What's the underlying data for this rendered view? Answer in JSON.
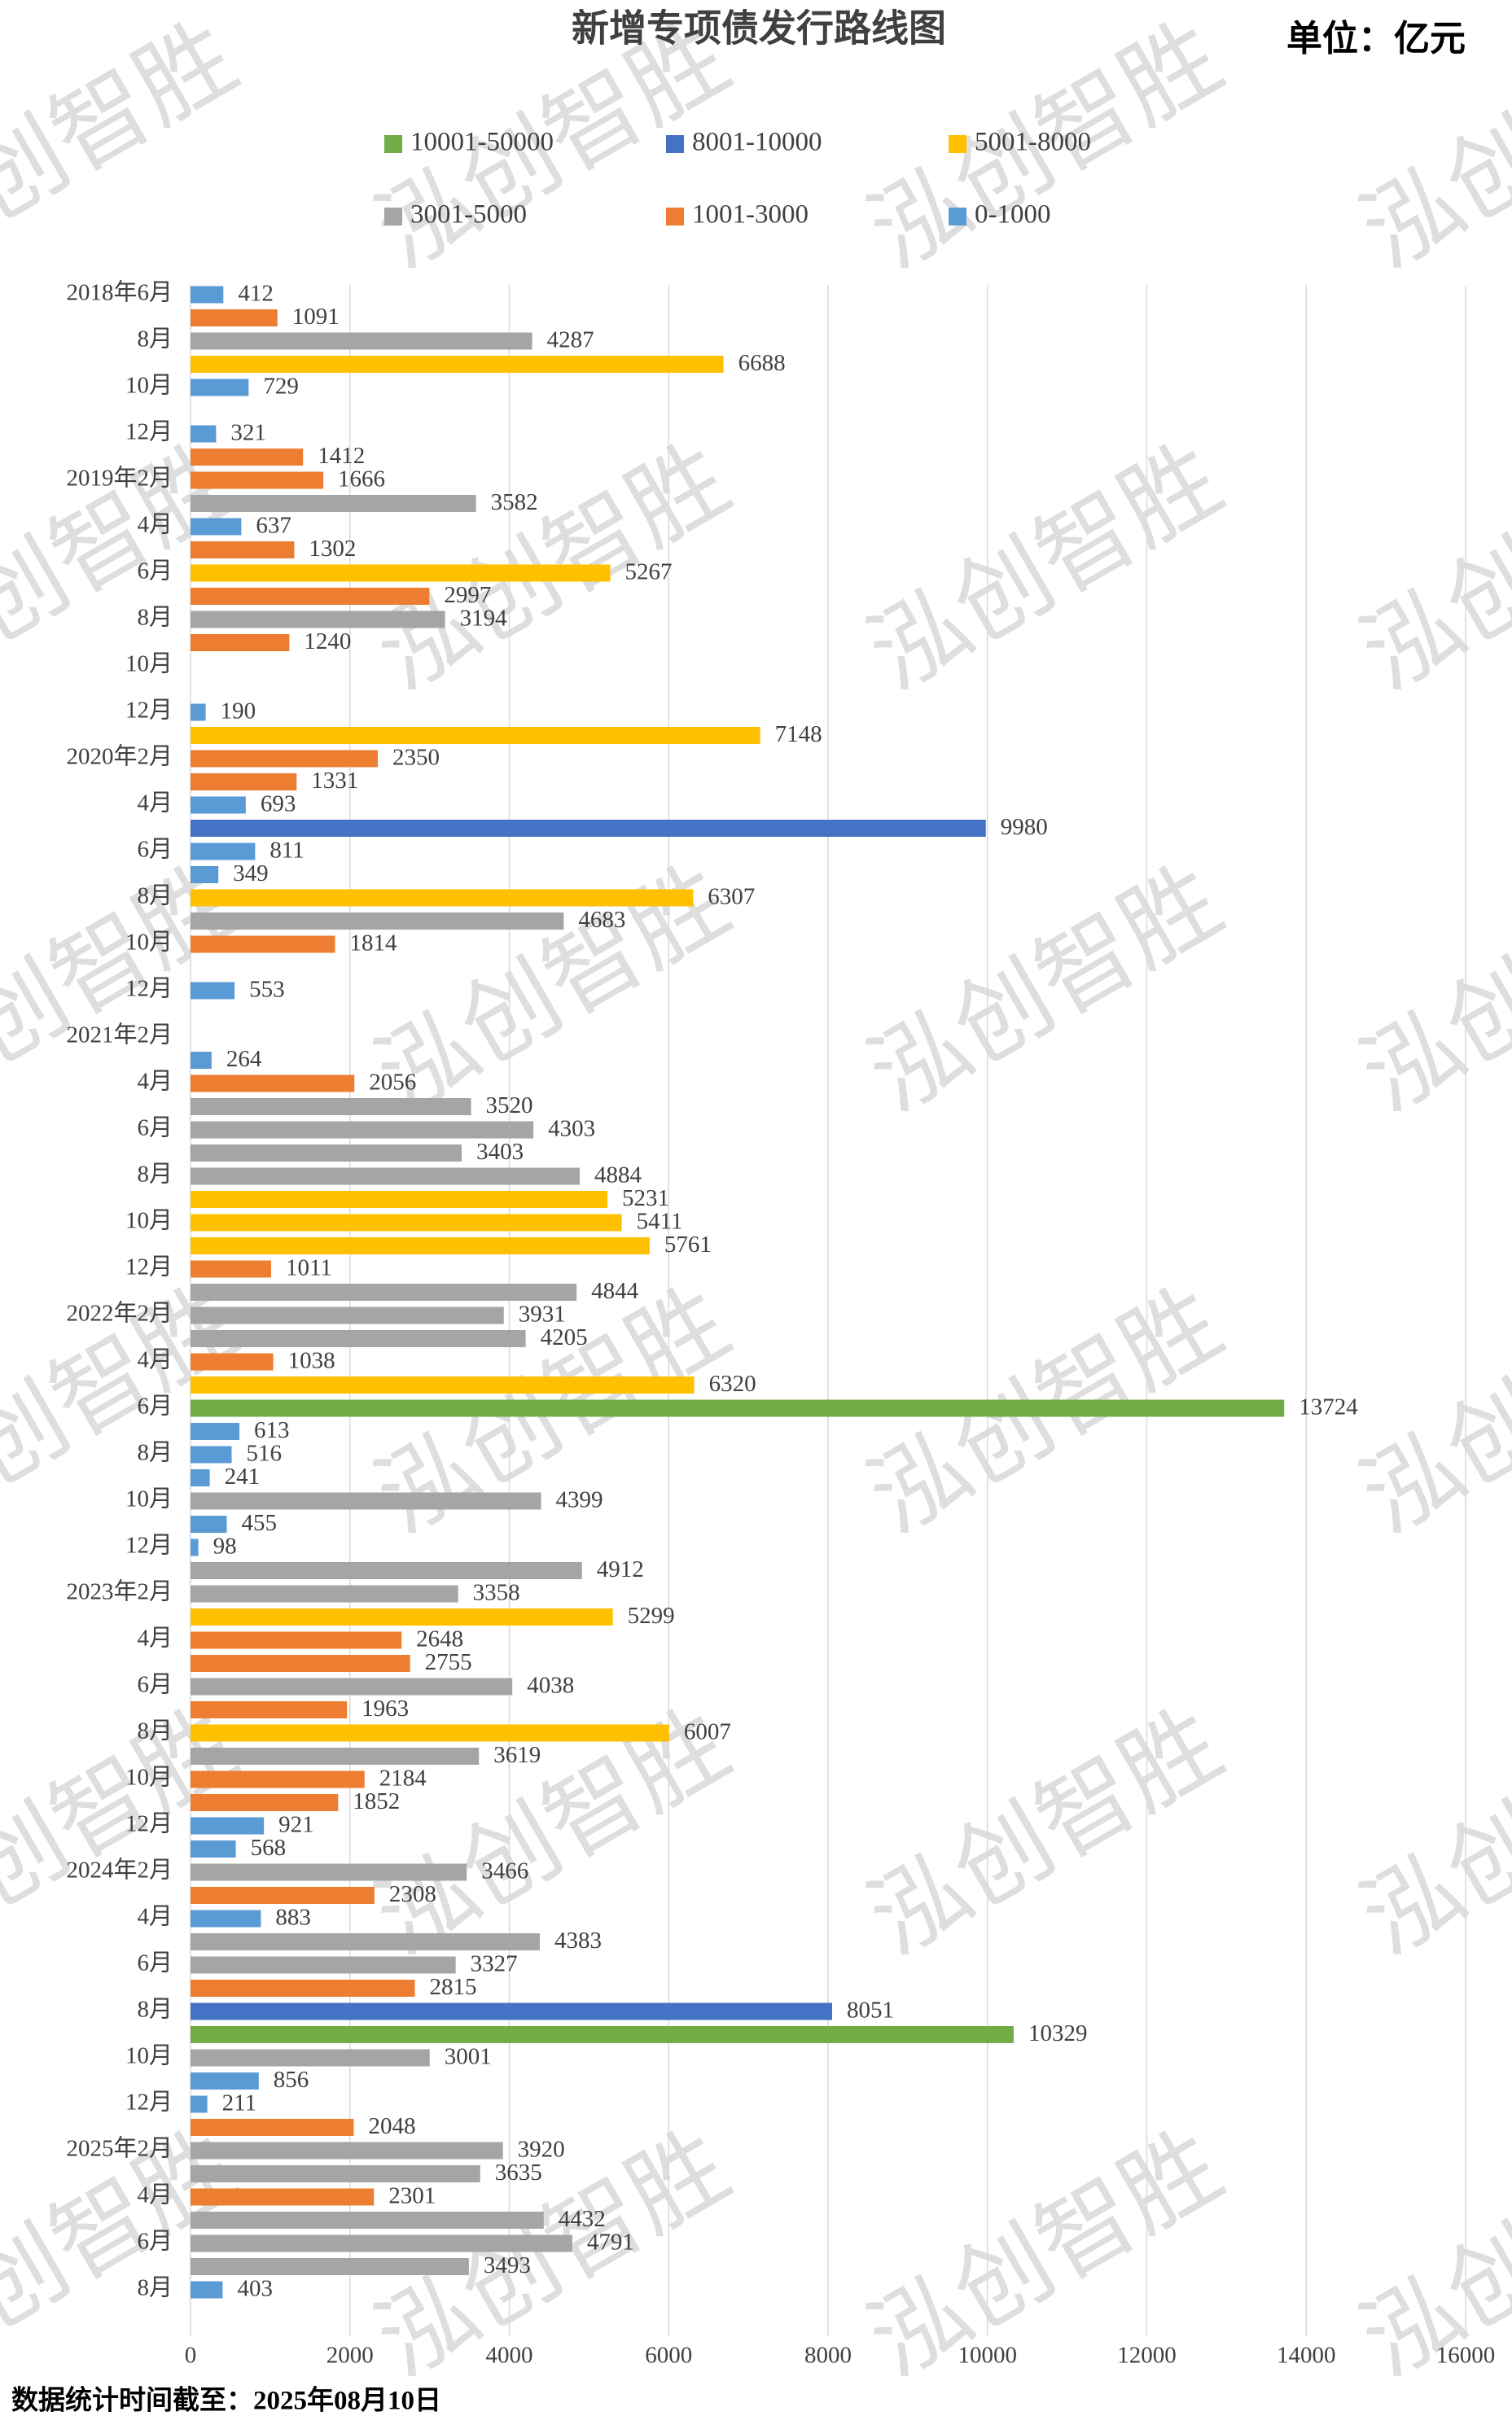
{
  "chart_data": {
    "type": "barh",
    "title": "新增专项债发行路线图",
    "unit": "单位：亿元",
    "footnote": "数据统计时间截至：2025年08月10日",
    "watermark": "泓创智胜",
    "legend": [
      {
        "name": "10001-50000",
        "color": "#70ad47"
      },
      {
        "name": "8001-10000",
        "color": "#4472c4"
      },
      {
        "name": "5001-8000",
        "color": "#ffc000"
      },
      {
        "name": "3001-5000",
        "color": "#a5a5a5"
      },
      {
        "name": "1001-3000",
        "color": "#ed7d31"
      },
      {
        "name": "0-1000",
        "color": "#5b9bd5"
      }
    ],
    "categories": [
      "2018年6月",
      null,
      "8月",
      null,
      "10月",
      null,
      "12月",
      null,
      "2019年2月",
      null,
      "4月",
      null,
      "6月",
      null,
      "8月",
      null,
      "10月",
      null,
      "12月",
      null,
      "2020年2月",
      null,
      "4月",
      null,
      "6月",
      null,
      "8月",
      null,
      "10月",
      null,
      "12月",
      null,
      "2021年2月",
      null,
      "4月",
      null,
      "6月",
      null,
      "8月",
      null,
      "10月",
      null,
      "12月",
      null,
      "2022年2月",
      null,
      "4月",
      null,
      "6月",
      null,
      "8月",
      null,
      "10月",
      null,
      "12月",
      null,
      "2023年2月",
      null,
      "4月",
      null,
      "6月",
      null,
      "8月",
      null,
      "10月",
      null,
      "12月",
      null,
      "2024年2月",
      null,
      "4月",
      null,
      "6月",
      null,
      "8月",
      null,
      "10月",
      null,
      "12月",
      null,
      "2025年2月",
      null,
      "4月",
      null,
      "6月",
      null,
      "8月"
    ],
    "values": [
      412,
      1091,
      4287,
      6688,
      729,
      null,
      321,
      1412,
      1666,
      3582,
      637,
      1302,
      5267,
      2997,
      3194,
      1240,
      null,
      null,
      190,
      7148,
      2350,
      1331,
      693,
      9980,
      811,
      349,
      6307,
      4683,
      1814,
      null,
      553,
      null,
      null,
      264,
      2056,
      3520,
      4303,
      3403,
      4884,
      5231,
      5411,
      5761,
      1011,
      4844,
      3931,
      4205,
      1038,
      6320,
      13724,
      613,
      516,
      241,
      4399,
      455,
      98,
      4912,
      3358,
      5299,
      2648,
      2755,
      4038,
      1963,
      6007,
      3619,
      2184,
      1852,
      921,
      568,
      3466,
      2308,
      883,
      4383,
      3327,
      2815,
      8051,
      10329,
      3001,
      856,
      211,
      2048,
      3920,
      3635,
      2301,
      4432,
      4791,
      3493,
      403
    ],
    "xlim": [
      0,
      16000
    ],
    "xticks": [
      0,
      2000,
      4000,
      6000,
      8000,
      10000,
      12000,
      14000,
      16000
    ],
    "grid": true
  }
}
